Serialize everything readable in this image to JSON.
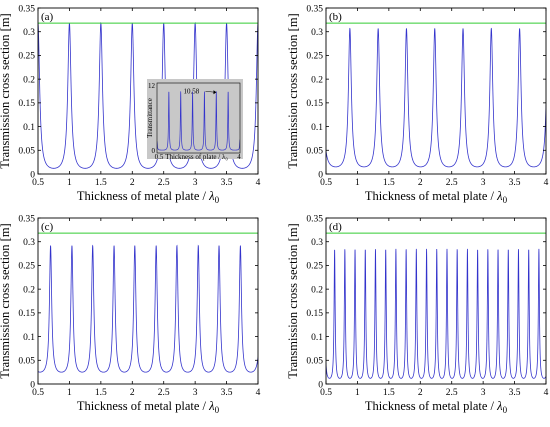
{
  "figure": {
    "panels": [
      {
        "label": "(a)",
        "xlabel_text": "Thickness of metal plate / ",
        "xlabel_symbol": "λ",
        "xlabel_sub": "0",
        "ylabel": "Transmission cross section [m]",
        "xticks": [
          "0.5",
          "1",
          "1.5",
          "2",
          "2.5",
          "3",
          "3.5",
          "4"
        ],
        "yticks": [
          "0",
          "0.05",
          "0.1",
          "0.15",
          "0.2",
          "0.25",
          "0.3",
          "0.35"
        ],
        "inset": {
          "ylabel": "Transmittance",
          "xlabel": "Thickness of plate / λ₀",
          "yticks": [
            "0",
            "12"
          ],
          "xticks": [
            "0.5",
            "4"
          ],
          "annotation": "10.58"
        }
      },
      {
        "label": "(b)",
        "xlabel_text": "Thickness of metal plate / ",
        "xlabel_symbol": "λ",
        "xlabel_sub": "0",
        "ylabel": "Transmission cross section [m]",
        "xticks": [
          "0.5",
          "1",
          "1.5",
          "2",
          "2.5",
          "3",
          "3.5",
          "4"
        ],
        "yticks": [
          "0",
          "0.05",
          "0.1",
          "0.15",
          "0.2",
          "0.25",
          "0.3",
          "0.35"
        ]
      },
      {
        "label": "(c)",
        "xlabel_text": "Thickness of metal plate / ",
        "xlabel_symbol": "λ",
        "xlabel_sub": "0",
        "ylabel": "Transmission cross section [m]",
        "xticks": [
          "0.5",
          "1",
          "1.5",
          "2",
          "2.5",
          "3",
          "3.5",
          "4"
        ],
        "yticks": [
          "0",
          "0.05",
          "0.1",
          "0.15",
          "0.2",
          "0.25",
          "0.3",
          "0.35"
        ]
      },
      {
        "label": "(d)",
        "xlabel_text": "Thickness of metal plate / ",
        "xlabel_symbol": "λ",
        "xlabel_sub": "0",
        "ylabel": "Transmission cross section [m]",
        "xticks": [
          "0.5",
          "1",
          "1.5",
          "2",
          "2.5",
          "3",
          "3.5",
          "4"
        ],
        "yticks": [
          "0",
          "0.05",
          "0.1",
          "0.15",
          "0.2",
          "0.25",
          "0.3",
          "0.35"
        ]
      }
    ]
  },
  "chart_data": [
    {
      "type": "line",
      "panel": "(a)",
      "xlim": [
        0.5,
        4
      ],
      "ylim": [
        0,
        0.35
      ],
      "colors": {
        "curve": "#3333cc",
        "reference": "#33cc33"
      },
      "reference_line": 0.318,
      "curve": {
        "peaks_x": [
          0.5,
          1.0,
          1.5,
          2.0,
          2.5,
          3.0,
          3.5,
          4.0
        ],
        "peak_y": 0.318,
        "min_y": 0.012
      },
      "inset": {
        "xlim": [
          0.5,
          4
        ],
        "ylim": [
          0,
          12
        ],
        "annotated_peak": {
          "x": 3.05,
          "y": 10.58
        },
        "peaks": [
          {
            "x": 0.5,
            "y": 2.0
          },
          {
            "x": 1.0,
            "y": 10.58
          },
          {
            "x": 1.5,
            "y": 10.58
          },
          {
            "x": 2.0,
            "y": 10.58
          },
          {
            "x": 2.5,
            "y": 10.58
          },
          {
            "x": 3.0,
            "y": 10.58
          },
          {
            "x": 3.5,
            "y": 10.58
          },
          {
            "x": 4.0,
            "y": 2.3
          }
        ],
        "min_y": 0.5
      }
    },
    {
      "type": "line",
      "panel": "(b)",
      "xlim": [
        0.5,
        4
      ],
      "ylim": [
        0,
        0.35
      ],
      "colors": {
        "curve": "#3333cc",
        "reference": "#33cc33"
      },
      "reference_line": 0.318,
      "curve": {
        "peaks_x": [
          0.43,
          0.88,
          1.33,
          1.78,
          2.23,
          2.68,
          3.13,
          3.58,
          4.03
        ],
        "peak_y": 0.307,
        "min_y": 0.015
      }
    },
    {
      "type": "line",
      "panel": "(c)",
      "xlim": [
        0.5,
        4
      ],
      "ylim": [
        0,
        0.35
      ],
      "colors": {
        "curve": "#3333cc",
        "reference": "#33cc33"
      },
      "reference_line": 0.318,
      "curve": {
        "peaks_x": [
          0.37,
          0.7,
          1.04,
          1.37,
          1.71,
          2.04,
          2.38,
          2.71,
          3.05,
          3.38,
          3.72,
          4.05
        ],
        "peak_y": 0.292,
        "min_y": 0.025
      }
    },
    {
      "type": "line",
      "panel": "(d)",
      "xlim": [
        0.5,
        4
      ],
      "ylim": [
        0,
        0.35
      ],
      "colors": {
        "curve": "#3333cc",
        "reference": "#33cc33"
      },
      "reference_line": 0.318,
      "curve": {
        "peaks_x": [
          0.475,
          0.637,
          0.8,
          0.962,
          1.125,
          1.287,
          1.45,
          1.612,
          1.775,
          1.937,
          2.1,
          2.262,
          2.425,
          2.587,
          2.75,
          2.912,
          3.075,
          3.237,
          3.4,
          3.562,
          3.725,
          3.887,
          4.05
        ],
        "peak_y": 0.285,
        "min_y": 0.012
      }
    }
  ]
}
